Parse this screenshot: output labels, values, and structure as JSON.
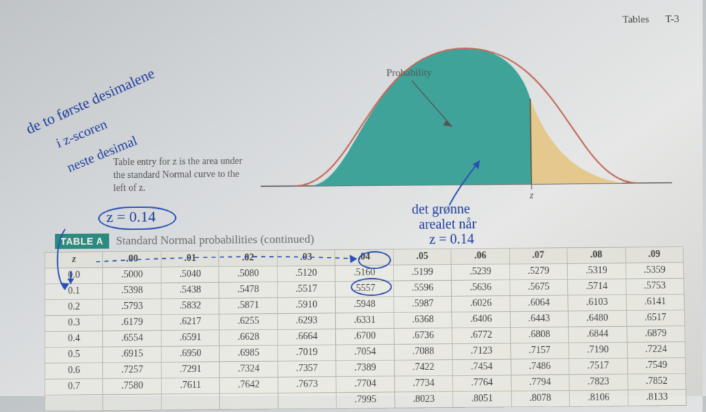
{
  "header": {
    "tables": "Tables",
    "page": "T-3"
  },
  "figure": {
    "label_probability": "Probability",
    "axis_label": "z",
    "curve_color": "#c46a5c",
    "fill_left": "#3fa39a",
    "fill_right": "#e4c88d",
    "bg": "transparent"
  },
  "caption": {
    "l1": "Table entry for z is the area under",
    "l2": "the standard Normal curve to the",
    "l3": "left of z."
  },
  "table_title": {
    "badge": "TABLE A",
    "rest": "Standard Normal probabilities (continued)"
  },
  "columns": [
    "z",
    ".00",
    ".01",
    ".02",
    ".03",
    ".04",
    ".05",
    ".06",
    ".07",
    ".08",
    ".09"
  ],
  "rows": [
    [
      "0.0",
      ".5000",
      ".5040",
      ".5080",
      ".5120",
      ".5160",
      ".5199",
      ".5239",
      ".5279",
      ".5319",
      ".5359"
    ],
    [
      "0.1",
      ".5398",
      ".5438",
      ".5478",
      ".5517",
      ".5557",
      ".5596",
      ".5636",
      ".5675",
      ".5714",
      ".5753"
    ],
    [
      "0.2",
      ".5793",
      ".5832",
      ".5871",
      ".5910",
      ".5948",
      ".5987",
      ".6026",
      ".6064",
      ".6103",
      ".6141"
    ],
    [
      "0.3",
      ".6179",
      ".6217",
      ".6255",
      ".6293",
      ".6331",
      ".6368",
      ".6406",
      ".6443",
      ".6480",
      ".6517"
    ],
    [
      "0.4",
      ".6554",
      ".6591",
      ".6628",
      ".6664",
      ".6700",
      ".6736",
      ".6772",
      ".6808",
      ".6844",
      ".6879"
    ],
    [
      "0.5",
      ".6915",
      ".6950",
      ".6985",
      ".7019",
      ".7054",
      ".7088",
      ".7123",
      ".7157",
      ".7190",
      ".7224"
    ],
    [
      "0.6",
      ".7257",
      ".7291",
      ".7324",
      ".7357",
      ".7389",
      ".7422",
      ".7454",
      ".7486",
      ".7517",
      ".7549"
    ],
    [
      "0.7",
      ".7580",
      ".7611",
      ".7642",
      ".7673",
      ".7704",
      ".7734",
      ".7764",
      ".7794",
      ".7823",
      ".7852"
    ],
    [
      "",
      "",
      "",
      "",
      "",
      ".7995",
      ".8023",
      ".8051",
      ".8078",
      ".8106",
      ".8133"
    ]
  ],
  "handwriting": {
    "line_a": "de to første desimalene",
    "line_b": "i z-scoren",
    "line_c": "neste desimal",
    "zval": "z = 0.14",
    "green_a": "det grønne",
    "green_b": "arealet når",
    "green_c": "z = 0.14",
    "color": "#1e3d9c"
  }
}
